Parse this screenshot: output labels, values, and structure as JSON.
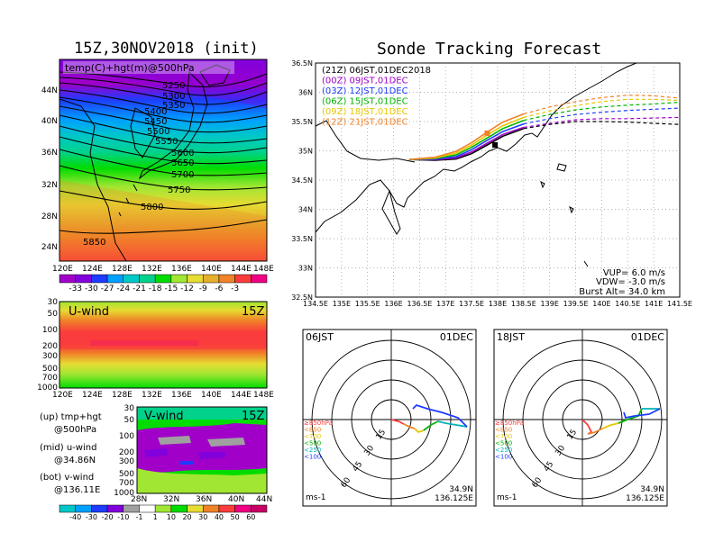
{
  "left_title": "15Z,30NOV2018 (init)",
  "right_title": "Sonde Tracking Forecast",
  "map500": {
    "label": "temp(C)+hgt(m)@500hPa",
    "lon_ticks": [
      "120E",
      "124E",
      "128E",
      "132E",
      "136E",
      "140E",
      "144E",
      "148E"
    ],
    "lat_ticks": [
      "44N",
      "40N",
      "36N",
      "32N",
      "28N",
      "24N"
    ],
    "contours": [
      "5250",
      "5300",
      "5350",
      "5400",
      "5450",
      "5500",
      "5550",
      "5600",
      "5650",
      "5700",
      "5750",
      "5800",
      "5850"
    ],
    "colorbar_labels": [
      "-33",
      "-30",
      "-27",
      "-24",
      "-21",
      "-18",
      "-15",
      "-12",
      "-9",
      "-6",
      "-3"
    ],
    "colorbar_colors": [
      "#a000c8",
      "#8200dc",
      "#1e3cff",
      "#00a0ff",
      "#00c8c8",
      "#00d28c",
      "#00dc00",
      "#a0e632",
      "#e6dc32",
      "#e6af2d",
      "#f08228",
      "#fa3c3c",
      "#f00082"
    ]
  },
  "uwind": {
    "label": "U-wind",
    "time": "15Z",
    "lon_ticks": [
      "120E",
      "124E",
      "128E",
      "132E",
      "136E",
      "140E",
      "144E",
      "148E"
    ],
    "p_ticks": [
      "30",
      "50",
      "100",
      "200",
      "300",
      "500",
      "700",
      "1000"
    ]
  },
  "vwind": {
    "label": "V-wind",
    "time": "15Z",
    "lat_ticks": [
      "28N",
      "32N",
      "36N",
      "40N",
      "44N"
    ],
    "p_ticks": [
      "30",
      "50",
      "100",
      "200",
      "300",
      "500",
      "700",
      "1000"
    ],
    "colorbar_labels": [
      "-40",
      "-30",
      "-20",
      "-10",
      "-1",
      "1",
      "10",
      "20",
      "30",
      "40",
      "50",
      "60"
    ],
    "colorbar_colors": [
      "#00c8c8",
      "#00a0ff",
      "#1e3cff",
      "#8200dc",
      "#a0a0a0",
      "#ffffff",
      "#a0e632",
      "#00dc00",
      "#e6dc32",
      "#f08228",
      "#fa3c3c",
      "#f00082",
      "#c80064"
    ]
  },
  "notes": [
    {
      "line1": "(up) tmp+hgt",
      "line2": "@500hPa"
    },
    {
      "line1": "(mid) u-wind",
      "line2": "@34.86N"
    },
    {
      "line1": "(bot) v-wind",
      "line2": "@136.11E"
    }
  ],
  "track": {
    "legend": [
      {
        "label": "(21Z)  06JST,01DEC2018",
        "color": "#000000"
      },
      {
        "label": "(00Z)  09JST,01DEC",
        "color": "#a000c8"
      },
      {
        "label": "(03Z)  12JST,01DEC",
        "color": "#1e3cff"
      },
      {
        "label": "(06Z)  15JST,01DEC",
        "color": "#00b400"
      },
      {
        "label": "(09Z)  18JST,01DEC",
        "color": "#e6c800"
      },
      {
        "label": "(12Z)  21JST,01DEC",
        "color": "#f08228"
      }
    ],
    "lon_ticks": [
      "134.5E",
      "135E",
      "135.5E",
      "136E",
      "136.5E",
      "137E",
      "137.5E",
      "138E",
      "138.5E",
      "139E",
      "139.5E",
      "140E",
      "140.5E",
      "141E",
      "141.5E"
    ],
    "lat_ticks": [
      "36.5N",
      "36N",
      "35.5N",
      "35N",
      "34.5N",
      "34N",
      "33.5N",
      "33N",
      "32.5N"
    ],
    "vup": "VUP= 6.0 m/s",
    "vdw": "VDW= -3.0 m/s",
    "burst": "Burst Alt= 34.0 km"
  },
  "hodo1": {
    "time": "06JST",
    "date": "01DEC",
    "lat": "34.9N",
    "lon": "136.125E",
    "unit": "ms-1"
  },
  "hodo2": {
    "time": "18JST",
    "date": "01DEC",
    "lat": "34.9N",
    "lon": "136.125E",
    "unit": "ms-1"
  },
  "hodo_rings": [
    "15",
    "30",
    "45",
    "60"
  ],
  "hodo_legend": [
    {
      "label": "≥850hPa",
      "color": "#fa3c3c"
    },
    {
      "label": "<850",
      "color": "#f08228"
    },
    {
      "label": "<700",
      "color": "#e6c800"
    },
    {
      "label": "<500",
      "color": "#00b400"
    },
    {
      "label": "<250",
      "color": "#00b4b4"
    },
    {
      "label": "<100",
      "color": "#1e3cff"
    }
  ],
  "chart_data": [
    {
      "type": "heatmap",
      "title": "15Z,30NOV2018 (init)",
      "subtitle": "temp(C)+hgt(m)@500hPa",
      "x_ticks": [
        "120E",
        "124E",
        "128E",
        "132E",
        "136E",
        "140E",
        "144E",
        "148E"
      ],
      "y_ticks": [
        "24N",
        "28N",
        "32N",
        "36N",
        "40N",
        "44N"
      ],
      "contour_levels": [
        5250,
        5300,
        5350,
        5400,
        5450,
        5500,
        5550,
        5600,
        5650,
        5700,
        5750,
        5800,
        5850
      ],
      "color_levels": [
        -33,
        -30,
        -27,
        -24,
        -21,
        -18,
        -15,
        -12,
        -9,
        -6,
        -3
      ]
    },
    {
      "type": "heatmap",
      "title": "U-wind",
      "x_ticks": [
        "120E",
        "124E",
        "128E",
        "132E",
        "136E",
        "140E",
        "144E",
        "148E"
      ],
      "y_ticks": [
        30,
        50,
        100,
        200,
        300,
        500,
        700,
        1000
      ]
    },
    {
      "type": "heatmap",
      "title": "V-wind",
      "x_ticks": [
        "28N",
        "32N",
        "36N",
        "40N",
        "44N"
      ],
      "y_ticks": [
        30,
        50,
        100,
        200,
        300,
        500,
        700,
        1000
      ],
      "color_levels": [
        -40,
        -30,
        -20,
        -10,
        -1,
        1,
        10,
        20,
        30,
        40,
        50,
        60
      ]
    },
    {
      "type": "line",
      "title": "Sonde Tracking Forecast",
      "xlim": [
        134.5,
        141.5
      ],
      "ylim": [
        32.5,
        36.5
      ],
      "series": [
        {
          "name": "(21Z)  06JST,01DEC2018",
          "x": [
            136.3,
            136.8,
            137.2,
            137.5,
            137.8,
            138.1,
            138.5,
            139.0,
            139.5,
            140.0,
            140.5,
            141.0,
            141.5
          ],
          "y": [
            34.85,
            34.84,
            34.86,
            34.95,
            35.1,
            35.25,
            35.38,
            35.45,
            35.5,
            35.5,
            35.49,
            35.47,
            35.45
          ]
        },
        {
          "name": "(00Z)  09JST,01DEC",
          "x": [
            136.3,
            136.8,
            137.2,
            137.5,
            137.8,
            138.1,
            138.5,
            139.0,
            139.5,
            140.0,
            140.5,
            141.0,
            141.5
          ],
          "y": [
            34.85,
            34.85,
            34.88,
            34.98,
            35.13,
            35.28,
            35.4,
            35.47,
            35.53,
            35.55,
            35.55,
            35.56,
            35.57
          ]
        },
        {
          "name": "(03Z)  12JST,01DEC",
          "x": [
            136.3,
            136.8,
            137.2,
            137.5,
            137.8,
            138.1,
            138.5,
            139.0,
            139.5,
            140.0,
            140.5,
            141.0,
            141.5
          ],
          "y": [
            34.85,
            34.86,
            34.9,
            35.02,
            35.18,
            35.33,
            35.46,
            35.55,
            35.62,
            35.66,
            35.69,
            35.71,
            35.73
          ]
        },
        {
          "name": "(06Z)  15JST,01DEC",
          "x": [
            136.3,
            136.8,
            137.2,
            137.5,
            137.8,
            138.1,
            138.5,
            139.0,
            139.5,
            140.0,
            140.5,
            141.0,
            141.5
          ],
          "y": [
            34.85,
            34.87,
            34.93,
            35.06,
            35.22,
            35.38,
            35.52,
            35.62,
            35.7,
            35.75,
            35.78,
            35.8,
            35.83
          ]
        },
        {
          "name": "(09Z)  18JST,01DEC",
          "x": [
            136.3,
            136.8,
            137.2,
            137.5,
            137.8,
            138.1,
            138.5,
            139.0,
            139.5,
            140.0,
            140.5,
            141.0,
            141.5
          ],
          "y": [
            34.85,
            34.88,
            34.96,
            35.1,
            35.27,
            35.43,
            35.57,
            35.68,
            35.77,
            35.84,
            35.88,
            35.88,
            35.86
          ]
        },
        {
          "name": "(12Z)  21JST,01DEC",
          "x": [
            136.3,
            136.8,
            137.2,
            137.5,
            137.8,
            138.1,
            138.5,
            139.0,
            139.5,
            140.0,
            140.5,
            141.0,
            141.5
          ],
          "y": [
            34.85,
            34.89,
            34.99,
            35.14,
            35.32,
            35.49,
            35.63,
            35.75,
            35.84,
            35.91,
            35.95,
            35.94,
            35.9
          ]
        }
      ]
    }
  ]
}
